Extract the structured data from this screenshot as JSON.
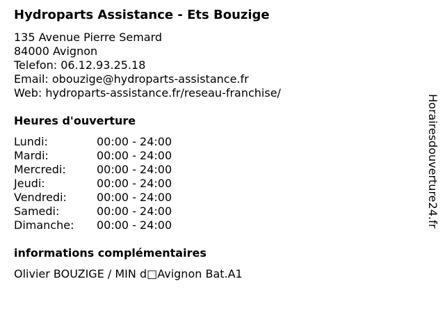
{
  "business": {
    "name": "Hydroparts Assistance - Ets Bouzige",
    "street": "135 Avenue Pierre Semard",
    "city": "84000 Avignon",
    "phone": "Telefon: 06.12.93.25.18",
    "email": "Email: obouzige@hydroparts-assistance.fr",
    "web": "Web: hydroparts-assistance.fr/reseau-franchise/"
  },
  "hours": {
    "heading": "Heures d'ouverture",
    "days": [
      {
        "day": "Lundi:",
        "time": "00:00 - 24:00"
      },
      {
        "day": "Mardi:",
        "time": "00:00 - 24:00"
      },
      {
        "day": "Mercredi:",
        "time": "00:00 - 24:00"
      },
      {
        "day": "Jeudi:",
        "time": "00:00 - 24:00"
      },
      {
        "day": "Vendredi:",
        "time": "00:00 - 24:00"
      },
      {
        "day": "Samedi:",
        "time": "00:00 - 24:00"
      },
      {
        "day": "Dimanche:",
        "time": "00:00 - 24:00"
      }
    ]
  },
  "extra": {
    "heading": "informations complémentaires",
    "text": "Olivier BOUZIGE / MIN d□Avignon Bat.A1"
  },
  "watermark": "Horairesdouverture24.fr"
}
